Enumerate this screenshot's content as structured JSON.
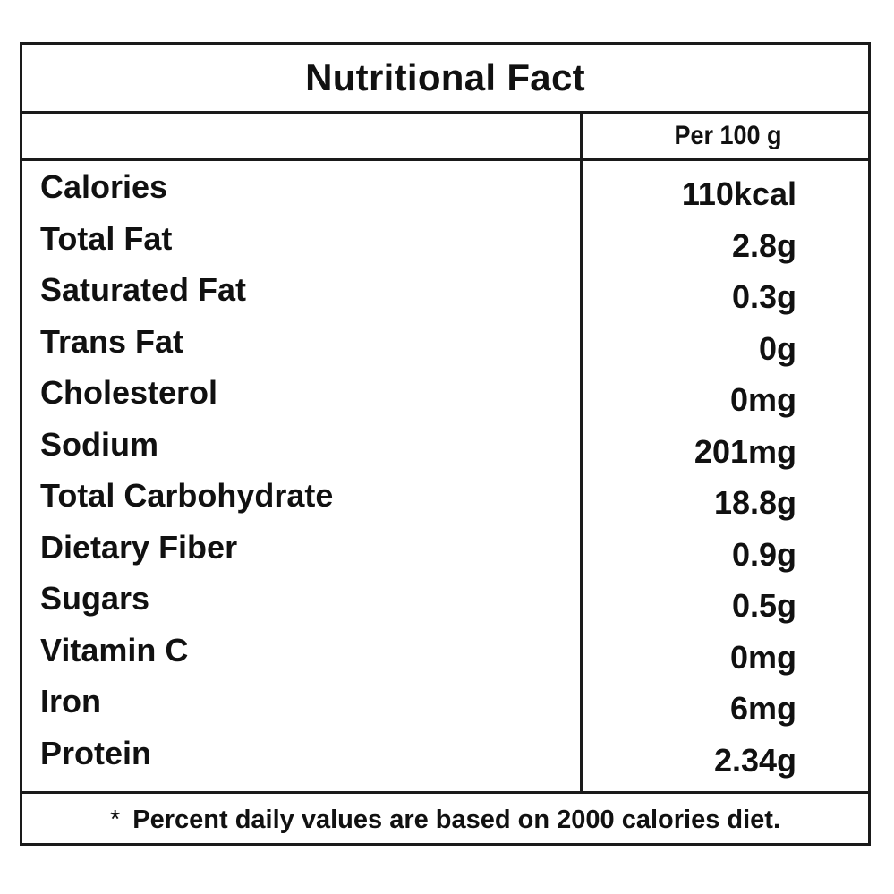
{
  "title": "Nutritional Fact",
  "column_header": "Per 100 g",
  "rows": [
    {
      "nutrient": "Calories",
      "amount": "110kcal"
    },
    {
      "nutrient": "Total Fat",
      "amount": "2.8g"
    },
    {
      "nutrient": "Saturated Fat",
      "amount": "0.3g"
    },
    {
      "nutrient": "Trans Fat",
      "amount": "0g"
    },
    {
      "nutrient": "Cholesterol",
      "amount": "0mg"
    },
    {
      "nutrient": "Sodium",
      "amount": "201mg"
    },
    {
      "nutrient": "Total Carbohydrate",
      "amount": "18.8g"
    },
    {
      "nutrient": "Dietary Fiber",
      "amount": "0.9g"
    },
    {
      "nutrient": "Sugars",
      "amount": "0.5g"
    },
    {
      "nutrient": "Vitamin C",
      "amount": "0mg"
    },
    {
      "nutrient": "Iron",
      "amount": "6mg"
    },
    {
      "nutrient": "Protein",
      "amount": "2.34g"
    }
  ],
  "footnote": {
    "marker": "*",
    "text": "Percent daily values are based on 2000 calories diet."
  }
}
